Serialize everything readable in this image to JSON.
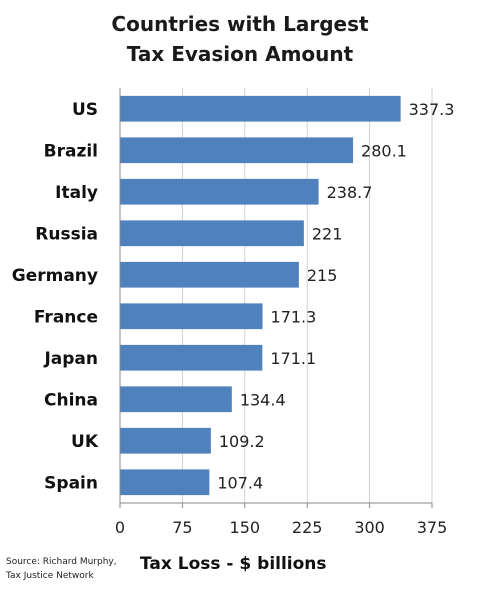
{
  "chart_data": {
    "type": "bar",
    "orientation": "horizontal",
    "title_lines": [
      "Countries with Largest",
      "Tax Evasion Amount"
    ],
    "categories": [
      "US",
      "Brazil",
      "Italy",
      "Russia",
      "Germany",
      "France",
      "Japan",
      "China",
      "UK",
      "Spain"
    ],
    "values": [
      337.3,
      280.1,
      238.7,
      221,
      215,
      171.3,
      171.1,
      134.4,
      109.2,
      107.4
    ],
    "value_labels": [
      "337.3",
      "280.1",
      "238.7",
      "221",
      "215",
      "171.3",
      "171.1",
      "134.4",
      "109.2",
      "107.4"
    ],
    "xlabel": "Tax Loss - $ billions",
    "ylabel": "",
    "xlim": [
      0,
      375
    ],
    "x_ticks": [
      "0",
      "75",
      "150",
      "225",
      "300",
      "375"
    ],
    "x_tick_values": [
      0,
      75,
      150,
      225,
      300,
      375
    ],
    "grid": "vertical",
    "bar_color": "#4f81bd",
    "source_lines": [
      "Source: Richard Murphy,",
      "Tax Justice  Network"
    ]
  }
}
